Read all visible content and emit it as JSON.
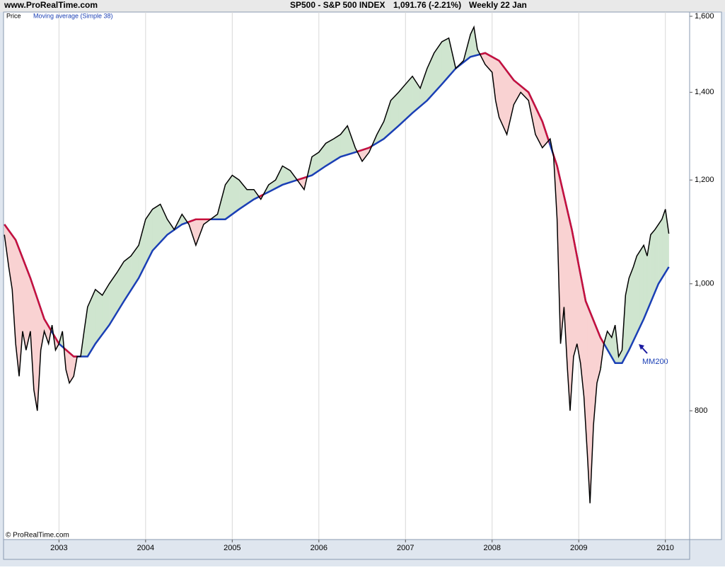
{
  "chart_data": {
    "type": "line",
    "site": "www.ProRealTime.com",
    "symbol": "SP500 - S&P 500 INDEX",
    "quote": "1,091.76 (-2.21%)",
    "period": "Weekly  22 Jan",
    "copyright": "© ProRealTime.com",
    "annotation": "MM200",
    "log_scale": true,
    "xlim": [
      2002.36,
      2010.28
    ],
    "xticks": [
      2003,
      2004,
      2005,
      2006,
      2007,
      2008,
      2009,
      2010
    ],
    "ylim": [
      638,
      1612
    ],
    "yticks": [
      {
        "value": 800,
        "label": "800"
      },
      {
        "value": 1000,
        "label": "1,000"
      },
      {
        "value": 1200,
        "label": "1,200"
      },
      {
        "value": 1400,
        "label": "1,400"
      },
      {
        "value": 1600,
        "label": "1,600"
      }
    ],
    "grid": true,
    "fill_above_color": "#cfe5cf",
    "fill_below_color": "#f9d2d2",
    "ma_below_color": "#c8103c",
    "series": [
      {
        "name": "Price",
        "color": "#000000",
        "x": [
          2002.37,
          2002.42,
          2002.46,
          2002.5,
          2002.54,
          2002.58,
          2002.62,
          2002.67,
          2002.71,
          2002.75,
          2002.79,
          2002.83,
          2002.88,
          2002.92,
          2002.96,
          2003.0,
          2003.04,
          2003.08,
          2003.12,
          2003.17,
          2003.21,
          2003.25,
          2003.29,
          2003.33,
          2003.42,
          2003.5,
          2003.58,
          2003.67,
          2003.75,
          2003.83,
          2003.92,
          2004.0,
          2004.08,
          2004.17,
          2004.25,
          2004.33,
          2004.42,
          2004.5,
          2004.58,
          2004.67,
          2004.75,
          2004.83,
          2004.92,
          2005.0,
          2005.08,
          2005.17,
          2005.25,
          2005.33,
          2005.42,
          2005.5,
          2005.58,
          2005.67,
          2005.75,
          2005.83,
          2005.92,
          2006.0,
          2006.08,
          2006.17,
          2006.25,
          2006.33,
          2006.42,
          2006.5,
          2006.58,
          2006.67,
          2006.75,
          2006.83,
          2006.92,
          2007.0,
          2007.08,
          2007.17,
          2007.25,
          2007.33,
          2007.42,
          2007.5,
          2007.58,
          2007.67,
          2007.75,
          2007.79,
          2007.83,
          2007.92,
          2008.0,
          2008.04,
          2008.08,
          2008.17,
          2008.25,
          2008.33,
          2008.42,
          2008.5,
          2008.58,
          2008.67,
          2008.71,
          2008.75,
          2008.79,
          2008.83,
          2008.87,
          2008.9,
          2008.94,
          2008.98,
          2009.02,
          2009.06,
          2009.1,
          2009.13,
          2009.17,
          2009.21,
          2009.25,
          2009.29,
          2009.33,
          2009.38,
          2009.42,
          2009.46,
          2009.5,
          2009.54,
          2009.58,
          2009.63,
          2009.67,
          2009.71,
          2009.75,
          2009.79,
          2009.83,
          2009.88,
          2009.92,
          2009.96,
          2010.0,
          2010.04
        ],
        "values": [
          1090,
          1030,
          990,
          900,
          850,
          920,
          890,
          920,
          830,
          800,
          890,
          920,
          900,
          930,
          890,
          900,
          920,
          860,
          840,
          850,
          880,
          880,
          920,
          960,
          990,
          980,
          1000,
          1020,
          1040,
          1050,
          1070,
          1120,
          1140,
          1150,
          1120,
          1100,
          1130,
          1110,
          1070,
          1110,
          1120,
          1130,
          1190,
          1210,
          1200,
          1180,
          1180,
          1160,
          1190,
          1200,
          1230,
          1220,
          1200,
          1180,
          1250,
          1260,
          1280,
          1290,
          1300,
          1320,
          1270,
          1240,
          1260,
          1300,
          1330,
          1380,
          1400,
          1420,
          1440,
          1410,
          1460,
          1500,
          1530,
          1540,
          1460,
          1480,
          1550,
          1570,
          1510,
          1470,
          1450,
          1380,
          1340,
          1300,
          1370,
          1400,
          1380,
          1300,
          1270,
          1290,
          1250,
          1120,
          900,
          960,
          860,
          800,
          880,
          900,
          870,
          820,
          740,
          680,
          780,
          840,
          860,
          900,
          920,
          910,
          930,
          880,
          890,
          980,
          1010,
          1030,
          1050,
          1060,
          1070,
          1050,
          1090,
          1100,
          1110,
          1120,
          1140,
          1092
        ]
      },
      {
        "name": "Moving average (Simple 38)",
        "color": "#1a3fb5",
        "x": [
          2002.37,
          2002.5,
          2002.67,
          2002.83,
          2003.0,
          2003.17,
          2003.25,
          2003.33,
          2003.42,
          2003.58,
          2003.75,
          2003.92,
          2004.08,
          2004.25,
          2004.42,
          2004.58,
          2004.75,
          2004.92,
          2005.08,
          2005.25,
          2005.42,
          2005.58,
          2005.75,
          2005.92,
          2006.08,
          2006.25,
          2006.42,
          2006.58,
          2006.75,
          2006.92,
          2007.08,
          2007.25,
          2007.42,
          2007.58,
          2007.75,
          2007.92,
          2008.08,
          2008.25,
          2008.42,
          2008.58,
          2008.75,
          2008.92,
          2009.08,
          2009.25,
          2009.42,
          2009.5,
          2009.58,
          2009.75,
          2009.92,
          2010.04
        ],
        "values": [
          1110,
          1080,
          1010,
          940,
          900,
          880,
          880,
          880,
          900,
          930,
          970,
          1010,
          1060,
          1090,
          1110,
          1120,
          1120,
          1120,
          1140,
          1160,
          1175,
          1190,
          1200,
          1210,
          1230,
          1250,
          1260,
          1270,
          1290,
          1320,
          1350,
          1380,
          1420,
          1460,
          1490,
          1500,
          1480,
          1430,
          1400,
          1330,
          1230,
          1100,
          970,
          910,
          870,
          870,
          890,
          940,
          1000,
          1030
        ]
      }
    ]
  }
}
